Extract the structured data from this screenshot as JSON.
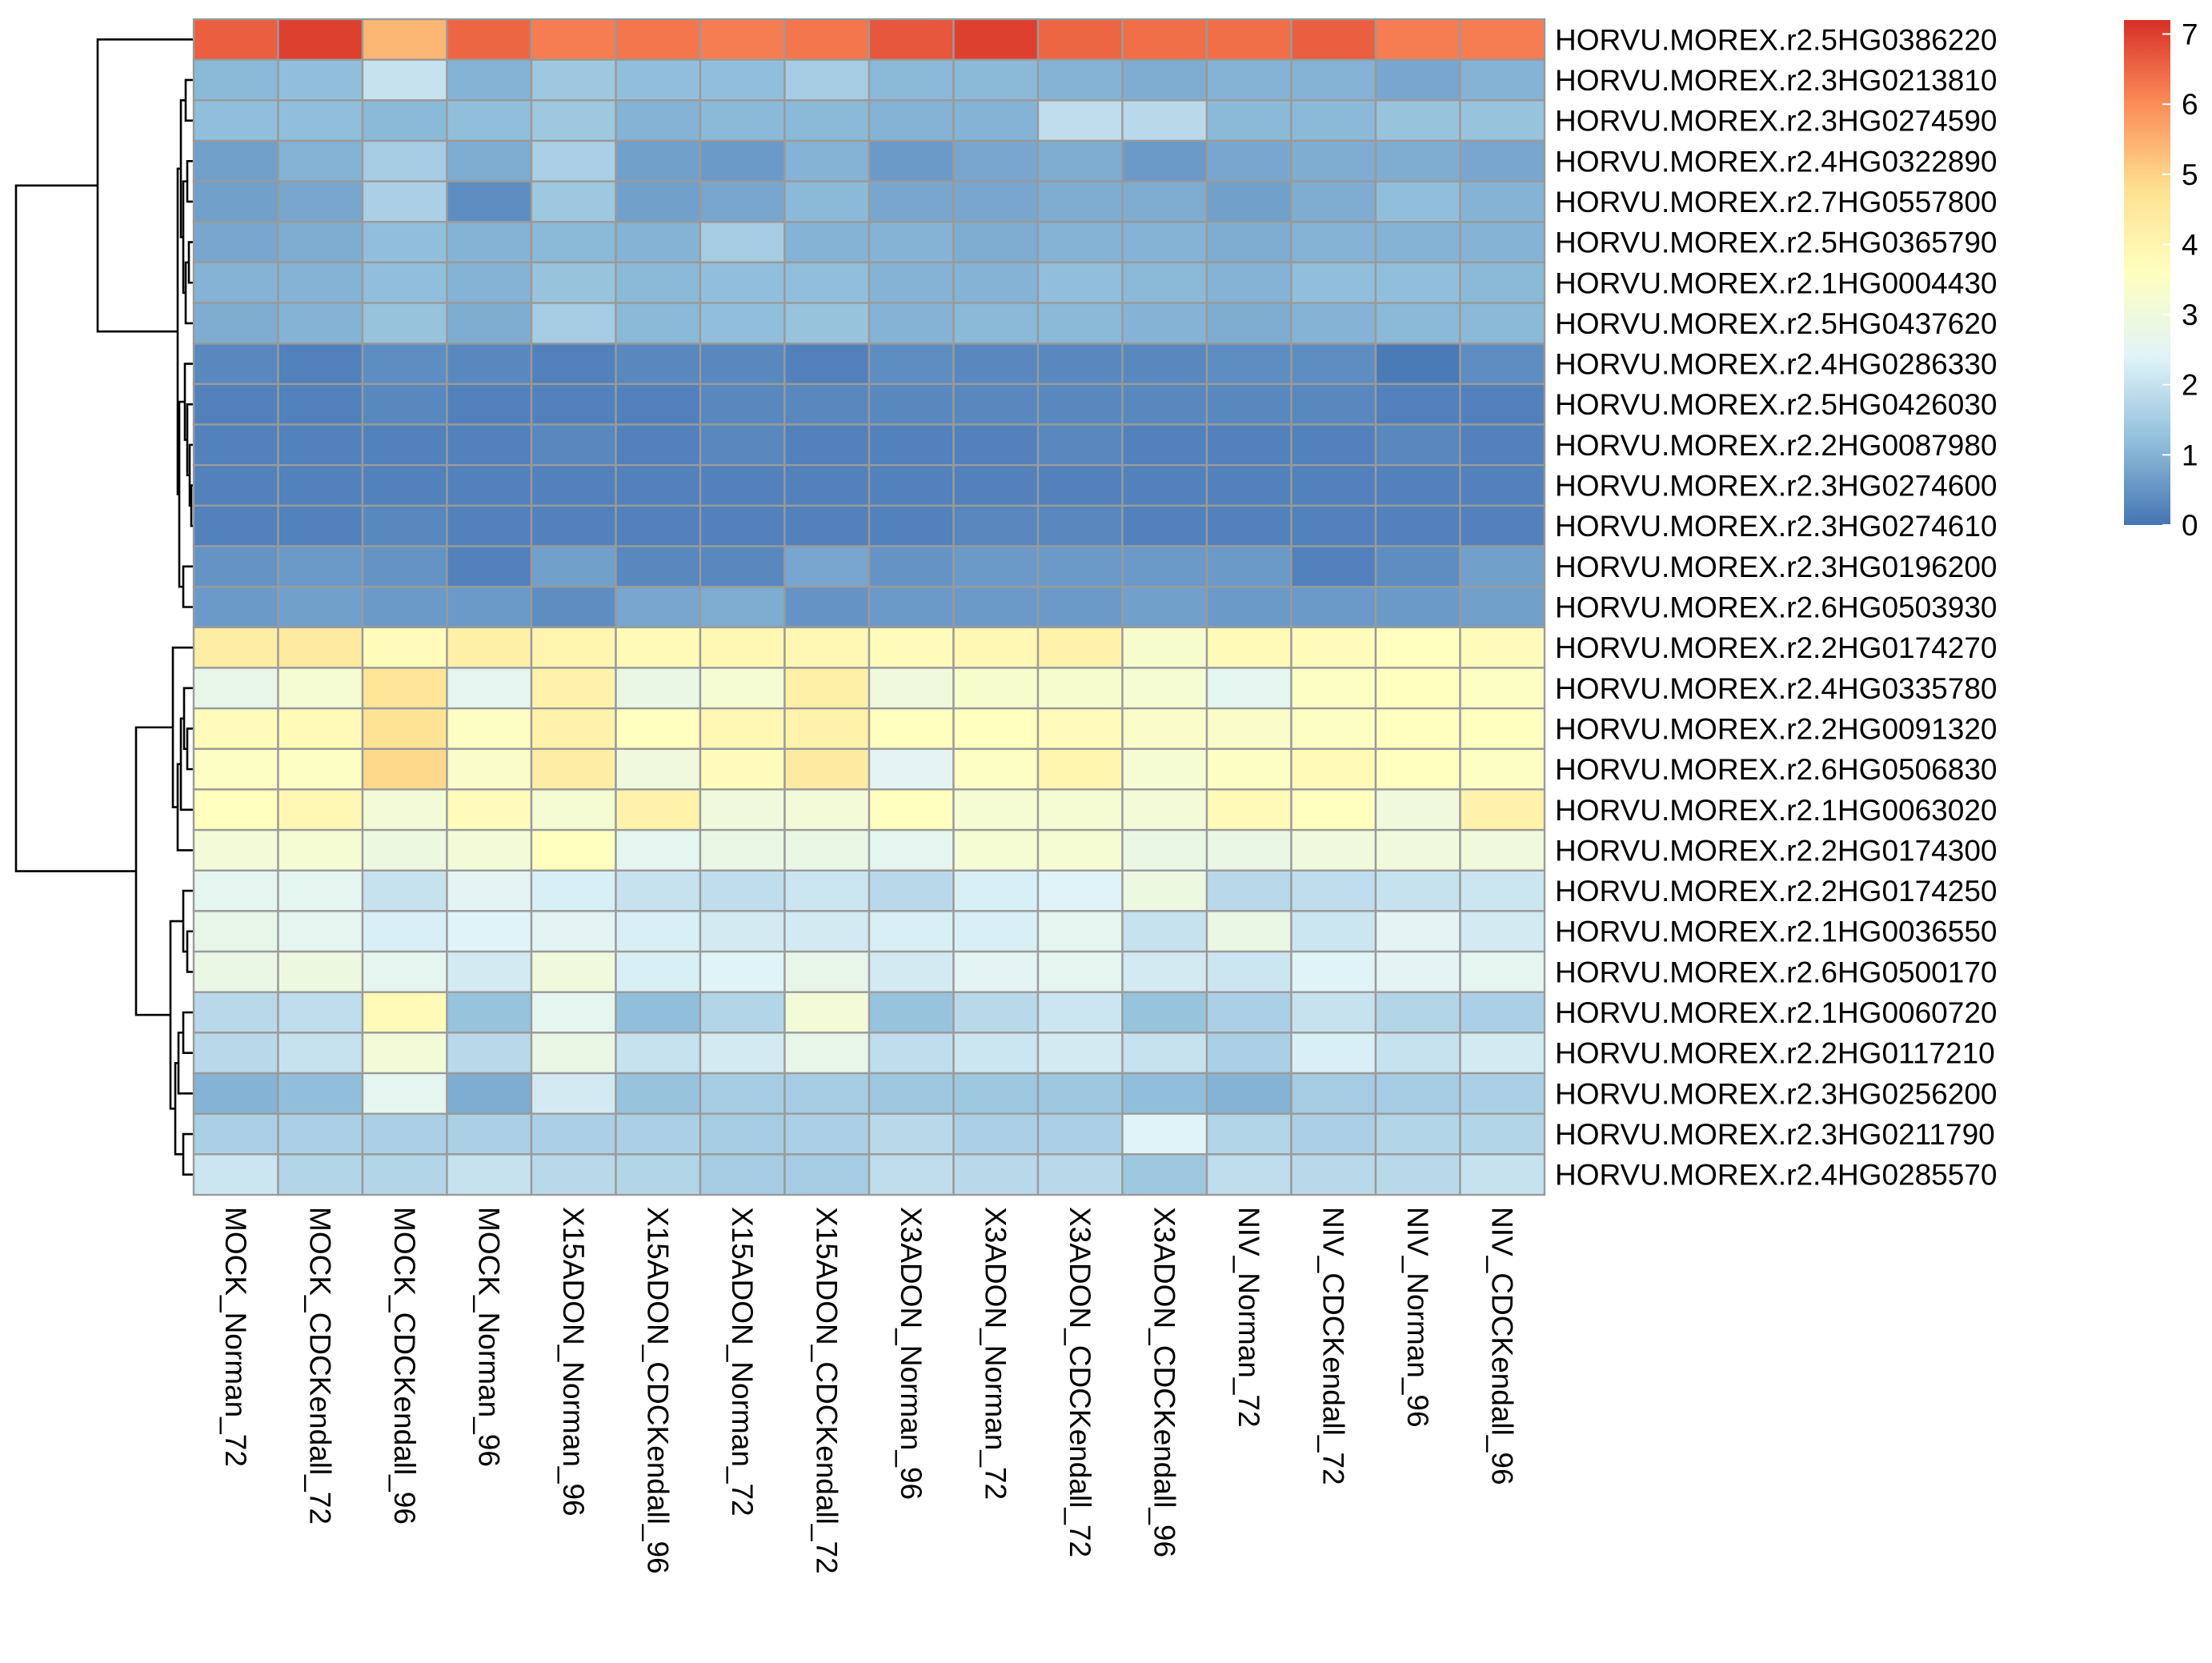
{
  "chart_data": {
    "type": "heatmap",
    "title": "",
    "xlabel": "",
    "ylabel": "",
    "columns": [
      "MOCK_Norman_72",
      "MOCK_CDCKendall_72",
      "MOCK_CDCKendall_96",
      "MOCK_Norman_96",
      "X15ADON_Norman_96",
      "X15ADON_CDCKendall_96",
      "X15ADON_Norman_72",
      "X15ADON_CDCKendall_72",
      "X3ADON_Norman_96",
      "X3ADON_Norman_72",
      "X3ADON_CDCKendall_72",
      "X3ADON_CDCKendall_96",
      "NIV_Norman_72",
      "NIV_CDCKendall_72",
      "NIV_Norman_96",
      "NIV_CDCKendall_96"
    ],
    "rows": [
      "HORVU.MOREX.r2.5HG0386220",
      "HORVU.MOREX.r2.3HG0213810",
      "HORVU.MOREX.r2.3HG0274590",
      "HORVU.MOREX.r2.4HG0322890",
      "HORVU.MOREX.r2.7HG0557800",
      "HORVU.MOREX.r2.5HG0365790",
      "HORVU.MOREX.r2.1HG0004430",
      "HORVU.MOREX.r2.5HG0437620",
      "HORVU.MOREX.r2.4HG0286330",
      "HORVU.MOREX.r2.5HG0426030",
      "HORVU.MOREX.r2.2HG0087980",
      "HORVU.MOREX.r2.3HG0274600",
      "HORVU.MOREX.r2.3HG0274610",
      "HORVU.MOREX.r2.3HG0196200",
      "HORVU.MOREX.r2.6HG0503930",
      "HORVU.MOREX.r2.2HG0174270",
      "HORVU.MOREX.r2.4HG0335780",
      "HORVU.MOREX.r2.2HG0091320",
      "HORVU.MOREX.r2.6HG0506830",
      "HORVU.MOREX.r2.1HG0063020",
      "HORVU.MOREX.r2.2HG0174300",
      "HORVU.MOREX.r2.2HG0174250",
      "HORVU.MOREX.r2.1HG0036550",
      "HORVU.MOREX.r2.6HG0500170",
      "HORVU.MOREX.r2.1HG0060720",
      "HORVU.MOREX.r2.2HG0117210",
      "HORVU.MOREX.r2.3HG0256200",
      "HORVU.MOREX.r2.3HG0211790",
      "HORVU.MOREX.r2.4HG0285570"
    ],
    "values": [
      [
        6.6,
        7.0,
        5.4,
        6.5,
        6.2,
        6.3,
        6.2,
        6.3,
        6.7,
        7.0,
        6.5,
        6.4,
        6.4,
        6.6,
        6.2,
        6.2
      ],
      [
        1.1,
        1.2,
        2.0,
        1.0,
        1.4,
        1.2,
        1.2,
        1.5,
        1.1,
        1.1,
        1.0,
        0.9,
        1.0,
        1.0,
        0.8,
        1.0
      ],
      [
        1.2,
        1.2,
        1.1,
        1.2,
        1.4,
        1.0,
        1.1,
        1.1,
        1.0,
        1.0,
        1.9,
        1.8,
        1.1,
        1.1,
        1.3,
        1.3
      ],
      [
        0.7,
        1.0,
        1.5,
        0.9,
        1.6,
        0.7,
        0.6,
        1.0,
        0.6,
        0.8,
        0.9,
        0.6,
        0.8,
        0.9,
        0.9,
        0.8
      ],
      [
        0.7,
        0.8,
        1.6,
        0.4,
        1.4,
        0.7,
        0.8,
        1.1,
        0.8,
        0.8,
        0.9,
        0.9,
        0.7,
        0.9,
        1.2,
        1.0
      ],
      [
        0.8,
        0.9,
        1.2,
        1.0,
        1.1,
        1.0,
        1.5,
        1.0,
        1.0,
        0.9,
        1.0,
        1.0,
        0.9,
        1.0,
        1.0,
        1.0
      ],
      [
        1.0,
        1.0,
        1.2,
        1.0,
        1.3,
        1.1,
        1.2,
        1.2,
        1.0,
        1.0,
        1.2,
        1.1,
        1.0,
        1.2,
        1.2,
        1.1
      ],
      [
        0.9,
        1.0,
        1.3,
        0.9,
        1.5,
        1.1,
        1.2,
        1.3,
        1.0,
        1.1,
        1.1,
        1.0,
        0.9,
        1.0,
        1.1,
        1.1
      ],
      [
        0.3,
        0.2,
        0.4,
        0.3,
        0.2,
        0.3,
        0.3,
        0.2,
        0.4,
        0.3,
        0.3,
        0.3,
        0.4,
        0.4,
        0.1,
        0.4
      ],
      [
        0.2,
        0.2,
        0.3,
        0.2,
        0.2,
        0.2,
        0.3,
        0.3,
        0.3,
        0.3,
        0.3,
        0.3,
        0.3,
        0.3,
        0.2,
        0.2
      ],
      [
        0.2,
        0.2,
        0.2,
        0.2,
        0.3,
        0.2,
        0.3,
        0.2,
        0.2,
        0.2,
        0.3,
        0.2,
        0.2,
        0.2,
        0.3,
        0.2
      ],
      [
        0.2,
        0.2,
        0.2,
        0.2,
        0.2,
        0.2,
        0.2,
        0.2,
        0.2,
        0.2,
        0.2,
        0.2,
        0.2,
        0.2,
        0.2,
        0.2
      ],
      [
        0.2,
        0.2,
        0.3,
        0.2,
        0.2,
        0.2,
        0.2,
        0.2,
        0.2,
        0.3,
        0.3,
        0.2,
        0.2,
        0.2,
        0.2,
        0.2
      ],
      [
        0.5,
        0.6,
        0.5,
        0.2,
        0.7,
        0.3,
        0.3,
        0.8,
        0.5,
        0.6,
        0.6,
        0.6,
        0.6,
        0.2,
        0.4,
        0.7
      ],
      [
        0.6,
        0.7,
        0.6,
        0.6,
        0.4,
        0.8,
        0.9,
        0.5,
        0.6,
        0.6,
        0.6,
        0.7,
        0.6,
        0.6,
        0.6,
        0.7
      ],
      [
        4.3,
        4.4,
        3.7,
        4.2,
        4.0,
        3.8,
        3.9,
        3.9,
        3.7,
        3.9,
        4.1,
        3.3,
        3.8,
        3.7,
        3.6,
        3.7
      ],
      [
        2.7,
        3.2,
        4.6,
        2.6,
        4.1,
        2.8,
        3.2,
        4.2,
        3.0,
        3.3,
        3.3,
        3.2,
        2.6,
        3.5,
        3.6,
        3.5
      ],
      [
        3.7,
        3.8,
        4.7,
        3.5,
        4.1,
        3.6,
        3.9,
        4.1,
        3.6,
        3.6,
        3.7,
        3.4,
        3.4,
        3.5,
        3.6,
        3.6
      ],
      [
        3.5,
        3.5,
        4.9,
        3.4,
        4.3,
        3.0,
        3.7,
        4.4,
        2.5,
        3.5,
        4.0,
        3.2,
        3.5,
        3.8,
        3.6,
        3.5
      ],
      [
        3.6,
        3.9,
        3.1,
        3.7,
        3.2,
        4.1,
        3.0,
        3.1,
        3.6,
        3.2,
        3.2,
        3.1,
        3.8,
        3.6,
        3.0,
        4.1
      ],
      [
        3.1,
        3.2,
        2.9,
        3.1,
        3.6,
        2.6,
        2.8,
        2.8,
        2.6,
        3.2,
        3.2,
        2.8,
        2.8,
        3.0,
        3.0,
        3.0
      ],
      [
        2.6,
        2.6,
        2.0,
        2.5,
        2.3,
        2.0,
        1.9,
        2.1,
        1.8,
        2.3,
        2.4,
        2.9,
        1.8,
        1.9,
        2.0,
        2.1
      ],
      [
        2.7,
        2.6,
        2.3,
        2.4,
        2.5,
        2.3,
        2.2,
        2.2,
        2.3,
        2.3,
        2.6,
        2.0,
        2.8,
        2.1,
        2.5,
        2.2
      ],
      [
        2.8,
        2.9,
        2.6,
        2.2,
        3.0,
        2.3,
        2.4,
        2.7,
        2.2,
        2.5,
        2.6,
        2.2,
        2.1,
        2.4,
        2.5,
        2.6
      ],
      [
        1.8,
        1.9,
        3.8,
        1.3,
        2.6,
        1.2,
        1.7,
        3.1,
        1.3,
        1.8,
        2.1,
        1.3,
        1.6,
        2.0,
        1.7,
        1.6
      ],
      [
        1.8,
        2.0,
        3.1,
        1.8,
        2.8,
        2.0,
        2.2,
        2.7,
        1.9,
        2.1,
        2.2,
        2.0,
        1.6,
        2.3,
        2.0,
        2.2
      ],
      [
        1.0,
        1.2,
        2.6,
        0.9,
        2.2,
        1.3,
        1.5,
        1.5,
        1.4,
        1.4,
        1.4,
        1.2,
        1.0,
        1.5,
        1.5,
        1.6
      ],
      [
        1.6,
        1.6,
        1.6,
        1.6,
        1.6,
        1.6,
        1.5,
        1.6,
        1.8,
        1.6,
        1.6,
        2.4,
        1.7,
        1.6,
        1.7,
        1.7
      ],
      [
        2.1,
        1.7,
        1.7,
        2.0,
        1.8,
        1.7,
        1.5,
        1.5,
        1.9,
        1.8,
        1.8,
        1.4,
        1.9,
        1.8,
        1.8,
        2.0
      ]
    ],
    "legend": {
      "placement": "right",
      "min": 0,
      "max": 7.2,
      "ticks": [
        0,
        1,
        2,
        3,
        4,
        5,
        6,
        7
      ],
      "tick_labels": [
        "0",
        "1",
        "2",
        "3",
        "4",
        "5",
        "6",
        "7"
      ],
      "colors": [
        "#4575b4",
        "#91bfdb",
        "#e0f3f8",
        "#ffffbf",
        "#fee090",
        "#fc8d59",
        "#d73027"
      ]
    },
    "grid": true,
    "row_dendrogram": true,
    "column_dendrogram": false
  }
}
